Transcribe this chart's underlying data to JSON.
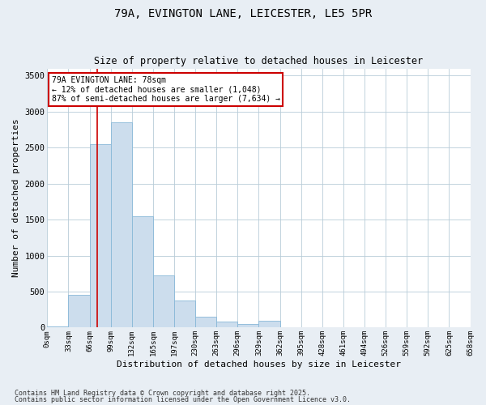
{
  "title1": "79A, EVINGTON LANE, LEICESTER, LE5 5PR",
  "title2": "Size of property relative to detached houses in Leicester",
  "xlabel": "Distribution of detached houses by size in Leicester",
  "ylabel": "Number of detached properties",
  "bar_values": [
    20,
    460,
    2550,
    2850,
    1550,
    730,
    380,
    150,
    80,
    50,
    90,
    10,
    10,
    10,
    5,
    5,
    5,
    5,
    5,
    5
  ],
  "bar_labels": [
    "0sqm",
    "33sqm",
    "66sqm",
    "99sqm",
    "132sqm",
    "165sqm",
    "197sqm",
    "230sqm",
    "263sqm",
    "296sqm",
    "329sqm",
    "362sqm",
    "395sqm",
    "428sqm",
    "461sqm",
    "494sqm",
    "526sqm",
    "559sqm",
    "592sqm",
    "625sqm",
    "658sqm"
  ],
  "bar_color": "#ccdded",
  "bar_edge_color": "#88b8d8",
  "vline_color": "#cc0000",
  "annotation_text": "79A EVINGTON LANE: 78sqm\n← 12% of detached houses are smaller (1,048)\n87% of semi-detached houses are larger (7,634) →",
  "annotation_box_color": "white",
  "annotation_box_edge": "#cc0000",
  "ylim": [
    0,
    3600
  ],
  "yticks": [
    0,
    500,
    1000,
    1500,
    2000,
    2500,
    3000,
    3500
  ],
  "footer1": "Contains HM Land Registry data © Crown copyright and database right 2025.",
  "footer2": "Contains public sector information licensed under the Open Government Licence v3.0.",
  "background_color": "#e8eef4",
  "plot_bg_color": "#ffffff",
  "grid_color": "#b8ccd8"
}
